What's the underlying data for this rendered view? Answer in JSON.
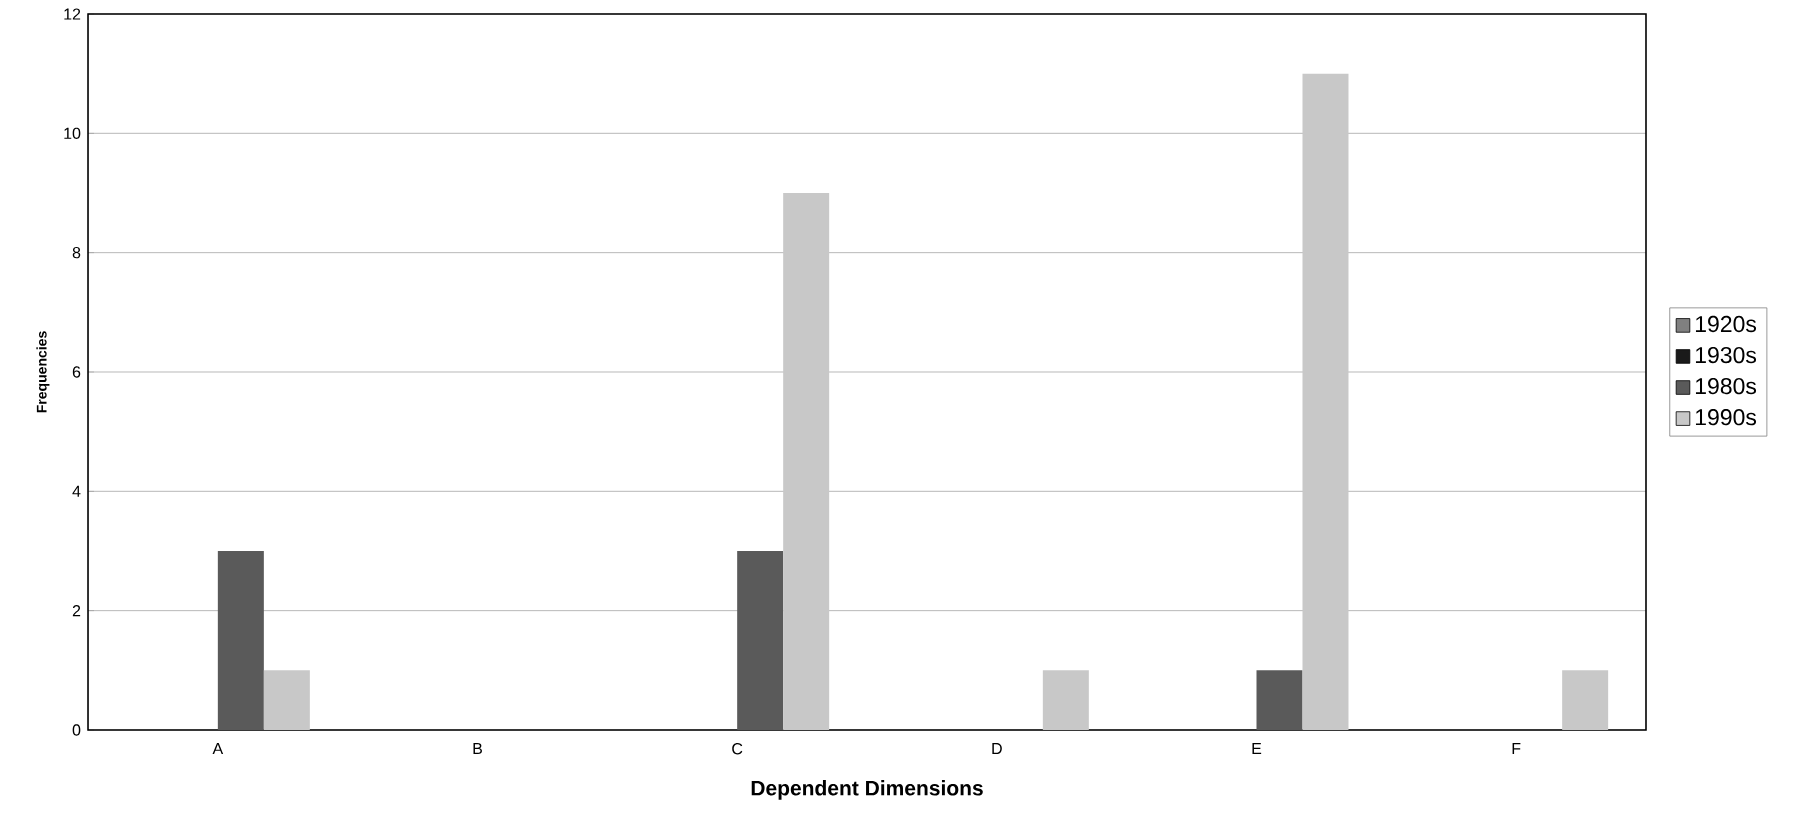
{
  "chart_data": {
    "type": "bar",
    "xlabel": "Dependent Dimensions",
    "ylabel": "Frequencies",
    "categories": [
      "A",
      "B",
      "C",
      "D",
      "E",
      "F"
    ],
    "series": [
      {
        "name": "1920s",
        "color": "#808080",
        "values": [
          0,
          0,
          0,
          0,
          0,
          0
        ]
      },
      {
        "name": "1930s",
        "color": "#1a1a1a",
        "values": [
          0,
          0,
          0,
          0,
          0,
          0
        ]
      },
      {
        "name": "1980s",
        "color": "#5a5a5a",
        "values": [
          3,
          0,
          3,
          0,
          1,
          0
        ]
      },
      {
        "name": "1990s",
        "color": "#c8c8c8",
        "values": [
          1,
          0,
          9,
          1,
          11,
          1
        ]
      }
    ],
    "ylim": [
      0,
      12
    ],
    "yticks": [
      0,
      2,
      4,
      6,
      8,
      10,
      12
    ],
    "grid": "y",
    "legend": "right"
  }
}
